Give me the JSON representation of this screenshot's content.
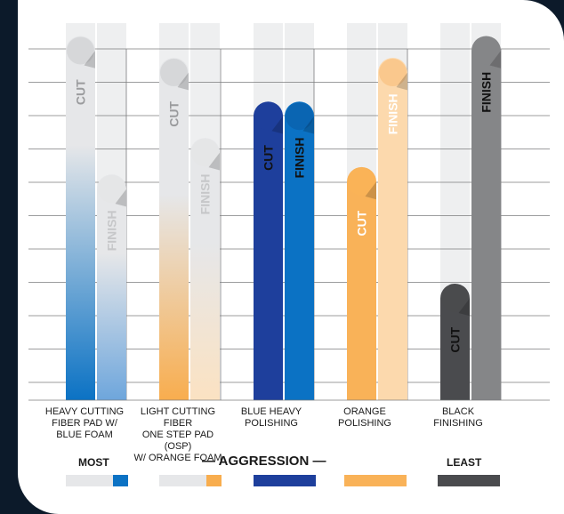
{
  "chart_data": {
    "type": "bar",
    "title": "",
    "categories": [
      "HEAVY CUTTING FIBER PAD W/ BLUE FOAM",
      "LIGHT CUTTING FIBER ONE STEP PAD (OSP) W/ ORANGE FOAM",
      "BLUE HEAVY POLISHING",
      "ORANGE POLISHING",
      "BLACK FINISHING"
    ],
    "category_lines": [
      [
        "HEAVY CUTTING",
        "FIBER PAD W/",
        "BLUE FOAM"
      ],
      [
        "LIGHT CUTTING FIBER",
        "ONE STEP PAD (OSP)",
        "W/ ORANGE FOAM"
      ],
      [
        "BLUE HEAVY",
        "POLISHING"
      ],
      [
        "ORANGE",
        "POLISHING"
      ],
      [
        "BLACK",
        "FINISHING"
      ]
    ],
    "series": [
      {
        "name": "CUT",
        "values": [
          10,
          9.4,
          8.2,
          6.4,
          3.2
        ]
      },
      {
        "name": "FINISH",
        "values": [
          6.2,
          7.2,
          8.2,
          9.4,
          10
        ]
      }
    ],
    "ylim": [
      0,
      10.5
    ],
    "grid": true,
    "colors": {
      "blue_foam": "#0b72c4",
      "orange_foam": "#f8ad4e",
      "blue_heavy": "#1e3f9c",
      "orange": "#f9b258",
      "black": "#4a4b4e",
      "finish_gray": "#858688",
      "light_gray": "#e6e7e9"
    }
  },
  "legend": {
    "most": "MOST",
    "aggression": "— AGGRESSION —",
    "least": "LEAST"
  }
}
